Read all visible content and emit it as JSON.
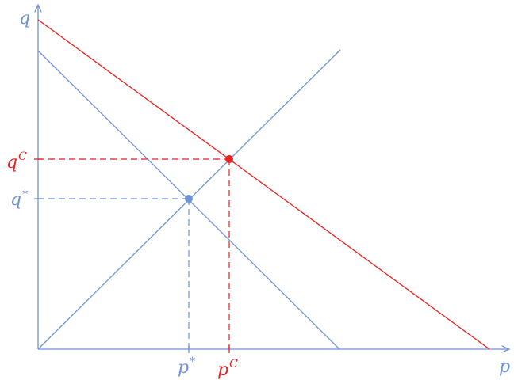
{
  "colors": {
    "blue": "#6f91d8",
    "red": "#ea1f1f"
  },
  "labels": {
    "q_axis": "q",
    "p_axis": "p",
    "q_c": {
      "base": "q",
      "sup": "C"
    },
    "q_star": {
      "base": "q",
      "sup": "*"
    },
    "p_star": {
      "base": "p",
      "sup": "*"
    },
    "p_c": {
      "base": "p",
      "sup": "C"
    }
  }
}
